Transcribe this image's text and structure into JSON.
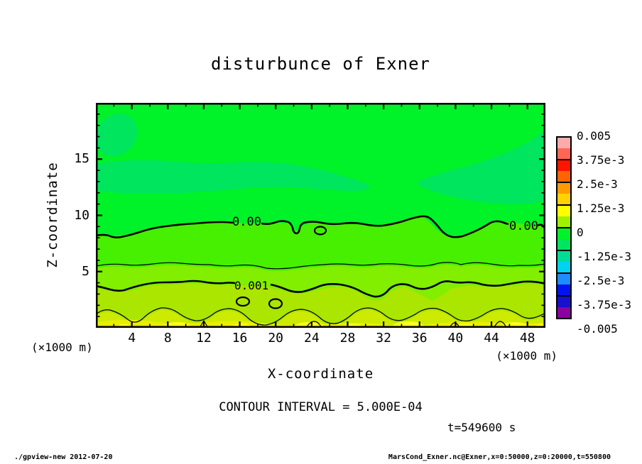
{
  "title": "disturbunce of Exner",
  "plot": {
    "x_label": "X-coordinate",
    "y_label": "Z-coordinate",
    "x_unit_left": "(×1000 m)",
    "x_unit_right": "(×1000 m)",
    "x_ticks": [
      "4",
      "8",
      "12",
      "16",
      "20",
      "24",
      "28",
      "32",
      "36",
      "40",
      "44",
      "48"
    ],
    "y_ticks": [
      "5",
      "10",
      "15"
    ],
    "contour_labels": {
      "zero_left": "0.00",
      "zero_right": "0.00",
      "one_em3": "0.001"
    }
  },
  "colorbar": {
    "labels": [
      "0.005",
      "3.75e-3",
      "2.5e-3",
      "1.25e-3",
      "0",
      "-1.25e-3",
      "-2.5e-3",
      "-3.75e-3",
      "-0.005"
    ],
    "boxes": [
      [
        "#ffaaaa",
        "#ff6655"
      ],
      [
        "#ff1400",
        "#ff6400"
      ],
      [
        "#ff9b00",
        "#ffd200"
      ],
      [
        "#ffff00",
        "#a0f000"
      ],
      [
        "#00f228",
        "#00e55e"
      ],
      [
        "#00dc96",
        "#00d2f0"
      ],
      [
        "#1e8cff",
        "#0014f0"
      ],
      [
        "#1810cc",
        "#8c00a0"
      ]
    ]
  },
  "captions": {
    "contour_interval": "CONTOUR INTERVAL = 5.000E-04",
    "time": "t=549600 s"
  },
  "footer": {
    "left": "./gpview-new  2012-07-20",
    "right": "MarsCond_Exner.nc@Exner,x=0:50000,z=0:20000,t=550800"
  },
  "chart_data": {
    "type": "heatmap",
    "title": "disturbunce of Exner",
    "xlabel": "X-coordinate (×1000 m)",
    "ylabel": "Z-coordinate (×1000 m)",
    "xlim": [
      0,
      50
    ],
    "ylim": [
      0,
      20
    ],
    "x_ticks": [
      4,
      8,
      12,
      16,
      20,
      24,
      28,
      32,
      36,
      40,
      44,
      48
    ],
    "y_ticks": [
      5,
      10,
      15
    ],
    "colorbar_levels": [
      0.005,
      0.00375,
      0.0025,
      0.00125,
      0,
      -0.00125,
      -0.0025,
      -0.00375,
      -0.005
    ],
    "contour_interval": 0.0005,
    "contour_lines": [
      {
        "level": 0.0,
        "label": "0.00",
        "style": "thick",
        "mean_z_x1000m": 9.2
      },
      {
        "level": 0.0005,
        "label": null,
        "style": "thin",
        "mean_z_x1000m": 5.6
      },
      {
        "level": 0.001,
        "label": "0.001",
        "style": "thick",
        "mean_z_x1000m": 3.7
      },
      {
        "level": 0.0015,
        "label": null,
        "style": "thin",
        "mean_z_x1000m": 1.3
      }
    ],
    "field_summary": "Exner function disturbance: slightly negative aloft (green, 0 to -1.25e-3 with patches), increasing toward the surface through 0.0005/0.001/0.0015 contours to ~0.002 (yellow) at the bottom boundary",
    "time_s": 549600,
    "legend_position": "right",
    "grid": false
  }
}
